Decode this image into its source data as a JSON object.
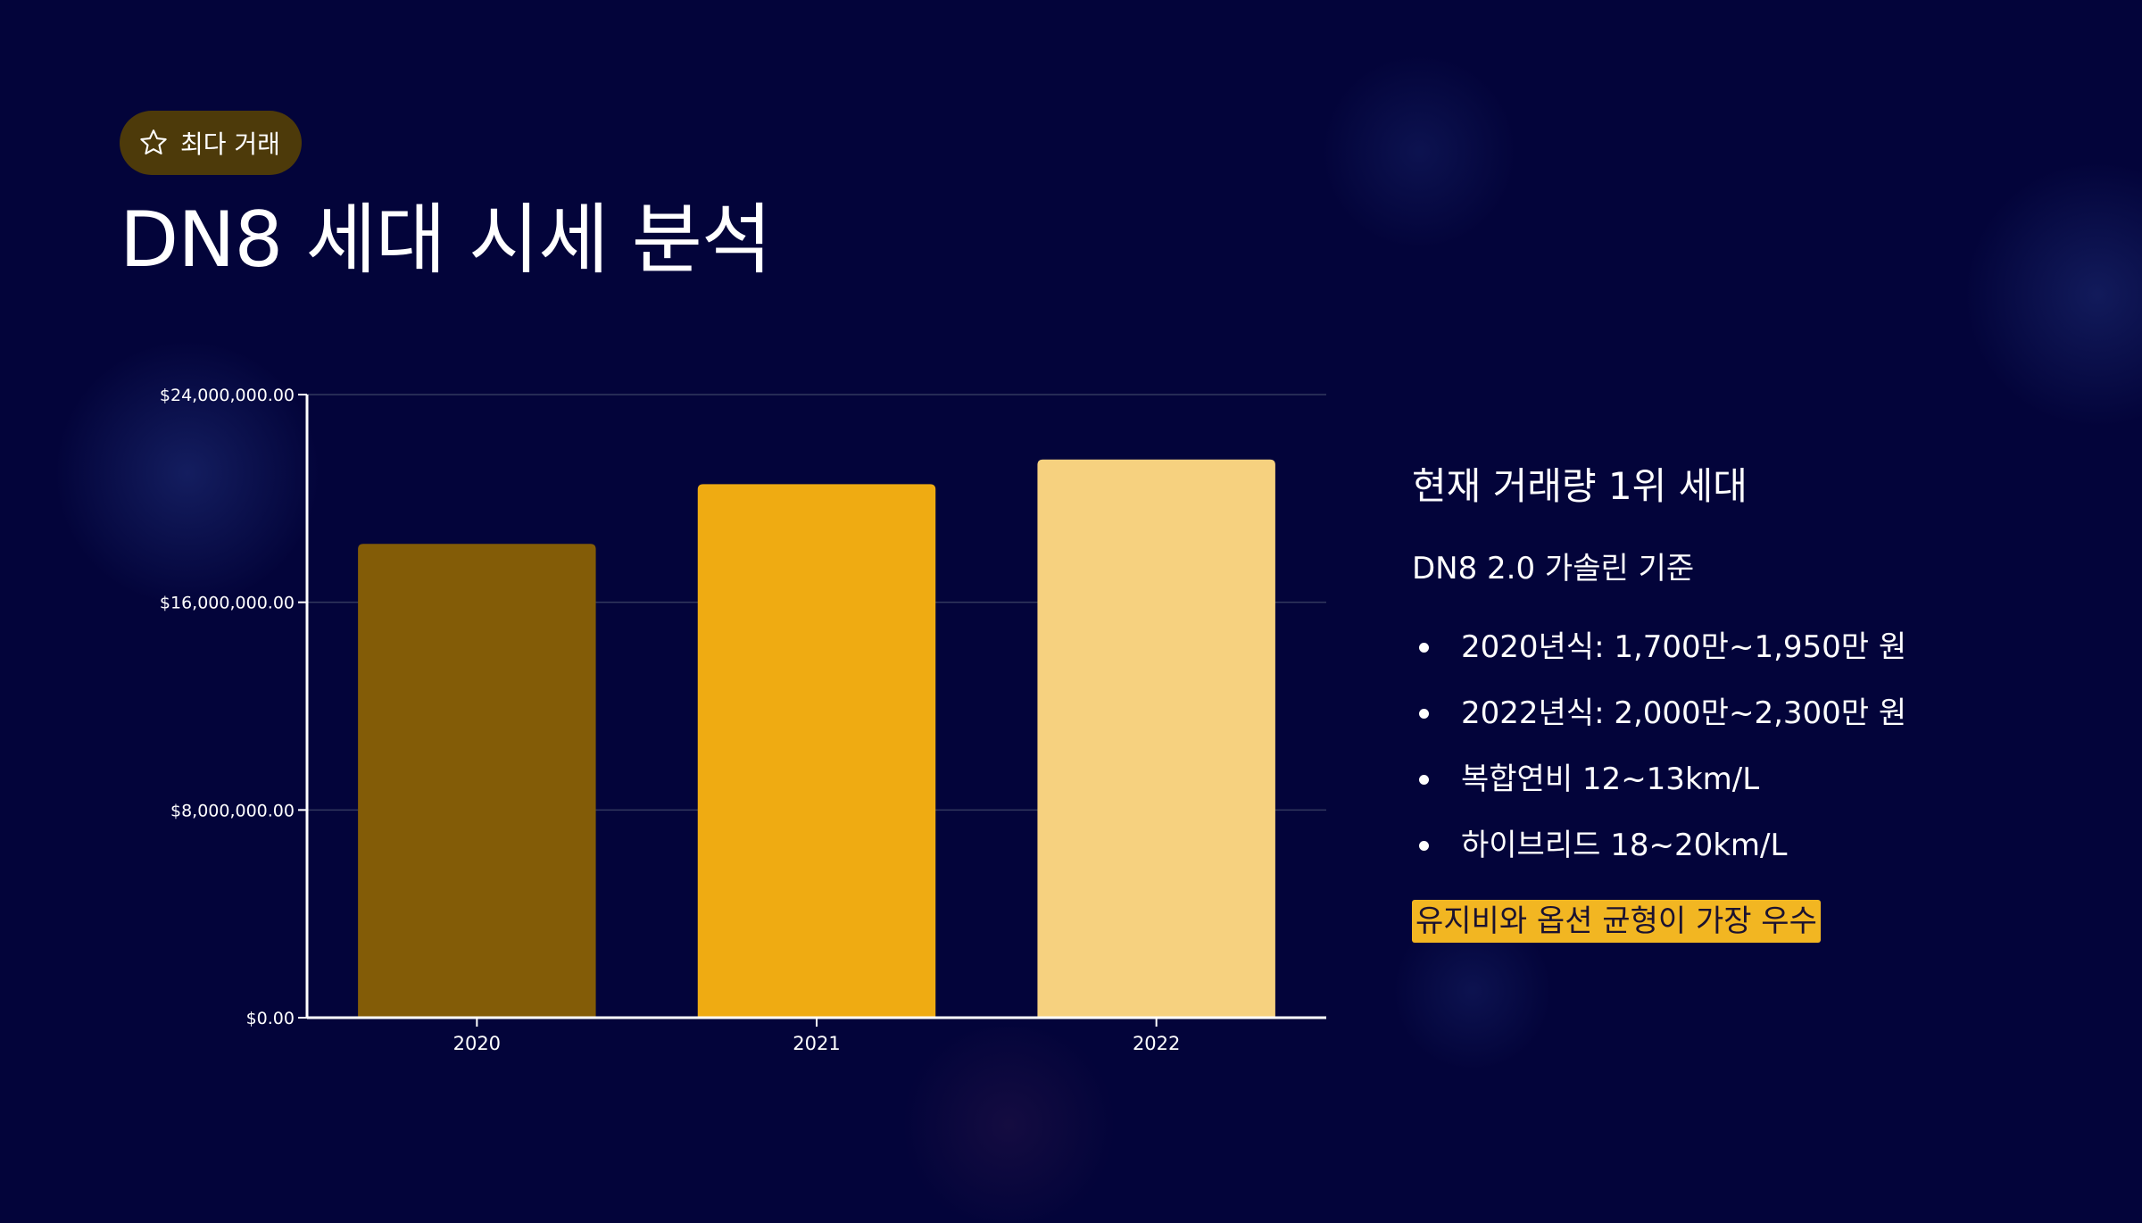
{
  "badge": {
    "icon": "star-outline-icon",
    "label": "최다 거래"
  },
  "title": "DN8 세대 시세 분석",
  "panel": {
    "subtitle": "현재 거래량 1위 세대",
    "basis": "DN8 2.0 가솔린 기준",
    "bullets": [
      "2020년식: 1,700만~1,950만 원",
      "2022년식: 2,000만~2,300만 원",
      "복합연비 12~13km/L",
      "하이브리드 18~20km/L"
    ],
    "highlight": "유지비와 옵션 균형이 가장 우수"
  },
  "colors": {
    "background": "#03043a",
    "badge_bg": "#4d3a0a",
    "highlight_bg": "#f2b622",
    "bar_2020": "#835c07",
    "bar_2021": "#efab12",
    "bar_2022": "#f6d17f"
  },
  "chart_data": {
    "type": "bar",
    "categories": [
      "2020",
      "2021",
      "2022"
    ],
    "values": [
      18250000,
      20550000,
      21500000
    ],
    "colors": [
      "#835c07",
      "#efab12",
      "#f6d17f"
    ],
    "ylim": [
      0,
      24000000
    ],
    "yticks": [
      0,
      8000000,
      16000000,
      24000000
    ],
    "ytick_labels": [
      "$0.00",
      "$8,000,000.00",
      "$16,000,000.00",
      "$24,000,000.00"
    ],
    "grid": true,
    "legend": "none"
  }
}
